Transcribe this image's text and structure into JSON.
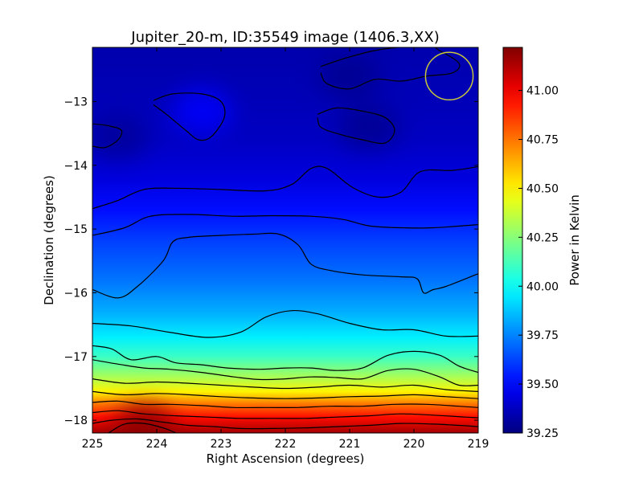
{
  "chart_data": {
    "type": "heatmap",
    "title": "Jupiter_20-m, ID:35549 image (1406.3,XX)",
    "xlabel": "Right Ascension (degrees)",
    "ylabel": "Declination (degrees)",
    "colorbar_label": "Power in Kelvin",
    "colormap": "jet",
    "xlim": [
      225,
      219
    ],
    "ylim": [
      -18.2,
      -12.15
    ],
    "clim": [
      39.25,
      41.22
    ],
    "x_ticks": [
      225,
      224,
      223,
      222,
      221,
      220,
      219
    ],
    "x_tick_labels": [
      "225",
      "224",
      "223",
      "222",
      "221",
      "220",
      "219"
    ],
    "y_ticks": [
      -13,
      -14,
      -15,
      -16,
      -17,
      -18
    ],
    "y_tick_labels": [
      "−13",
      "−14",
      "−15",
      "−16",
      "−17",
      "−18"
    ],
    "colorbar_ticks": [
      41.0,
      40.75,
      40.5,
      40.25,
      40.0,
      39.75,
      39.5,
      39.25
    ],
    "colorbar_tick_labels": [
      "41.00",
      "40.75",
      "40.50",
      "40.25",
      "40.00",
      "39.75",
      "39.50",
      "39.25"
    ],
    "value_rows": [
      {
        "dec": -12.2,
        "value": 39.34
      },
      {
        "dec": -13.0,
        "value": 39.36
      },
      {
        "dec": -13.6,
        "value": 39.38
      },
      {
        "dec": -14.2,
        "value": 39.43
      },
      {
        "dec": -14.7,
        "value": 39.52
      },
      {
        "dec": -15.2,
        "value": 39.62
      },
      {
        "dec": -15.8,
        "value": 39.72
      },
      {
        "dec": -16.3,
        "value": 39.83
      },
      {
        "dec": -16.7,
        "value": 39.96
      },
      {
        "dec": -17.0,
        "value": 40.1
      },
      {
        "dec": -17.3,
        "value": 40.3
      },
      {
        "dec": -17.55,
        "value": 40.5
      },
      {
        "dec": -17.75,
        "value": 40.75
      },
      {
        "dec": -17.95,
        "value": 40.95
      },
      {
        "dec": -18.2,
        "value": 41.15
      }
    ],
    "local_features": [
      {
        "ra": 223.3,
        "dec": -13.15,
        "value": 39.5
      },
      {
        "ra": 224.6,
        "dec": -13.55,
        "value": 39.3
      },
      {
        "ra": 220.7,
        "dec": -13.4,
        "value": 39.28
      },
      {
        "ra": 221.0,
        "dec": -12.6,
        "value": 39.28
      },
      {
        "ra": 224.2,
        "dec": -18.1,
        "value": 41.2
      }
    ],
    "contours": [
      {
        "points": [
          [
            224.05,
            -12.98
          ],
          [
            223.75,
            -12.88
          ],
          [
            223.3,
            -12.88
          ],
          [
            223.0,
            -13.0
          ],
          [
            222.95,
            -13.25
          ],
          [
            223.15,
            -13.55
          ],
          [
            223.35,
            -13.6
          ],
          [
            223.55,
            -13.45
          ],
          [
            223.85,
            -13.2
          ],
          [
            224.05,
            -13.05
          ]
        ]
      },
      {
        "points": [
          [
            225,
            -13.35
          ],
          [
            224.75,
            -13.38
          ],
          [
            224.55,
            -13.45
          ],
          [
            224.6,
            -13.6
          ],
          [
            224.8,
            -13.72
          ],
          [
            225,
            -13.7
          ]
        ]
      },
      {
        "points": [
          [
            221.5,
            -13.2
          ],
          [
            221.2,
            -13.1
          ],
          [
            220.8,
            -13.15
          ],
          [
            220.45,
            -13.25
          ],
          [
            220.3,
            -13.45
          ],
          [
            220.45,
            -13.65
          ],
          [
            220.8,
            -13.6
          ],
          [
            221.2,
            -13.5
          ],
          [
            221.45,
            -13.4
          ],
          [
            221.5,
            -13.25
          ]
        ]
      },
      {
        "points": [
          [
            221.45,
            -12.45
          ],
          [
            221.0,
            -12.3
          ],
          [
            220.5,
            -12.18
          ],
          [
            219.8,
            -12.12
          ],
          [
            219.6,
            -12.2
          ],
          [
            219.3,
            -12.4
          ],
          [
            219.4,
            -12.55
          ],
          [
            219.8,
            -12.6
          ],
          [
            220.2,
            -12.68
          ],
          [
            220.6,
            -12.65
          ],
          [
            221.0,
            -12.8
          ],
          [
            221.35,
            -12.72
          ],
          [
            221.45,
            -12.55
          ]
        ]
      },
      {
        "points": [
          [
            225,
            -14.68
          ],
          [
            224.6,
            -14.55
          ],
          [
            224.2,
            -14.38
          ],
          [
            223.7,
            -14.36
          ],
          [
            223.0,
            -14.38
          ],
          [
            222.3,
            -14.4
          ],
          [
            221.9,
            -14.3
          ],
          [
            221.6,
            -14.05
          ],
          [
            221.35,
            -14.05
          ],
          [
            220.95,
            -14.35
          ],
          [
            220.55,
            -14.5
          ],
          [
            220.2,
            -14.42
          ],
          [
            219.9,
            -14.1
          ],
          [
            219.4,
            -14.08
          ],
          [
            219,
            -14.02
          ]
        ]
      },
      {
        "points": [
          [
            225,
            -15.1
          ],
          [
            224.5,
            -14.98
          ],
          [
            224.1,
            -14.8
          ],
          [
            223.5,
            -14.77
          ],
          [
            222.8,
            -14.8
          ],
          [
            222.2,
            -14.79
          ],
          [
            221.6,
            -14.8
          ],
          [
            221.1,
            -14.85
          ],
          [
            220.7,
            -14.95
          ],
          [
            220.2,
            -14.98
          ],
          [
            219.7,
            -14.98
          ],
          [
            219,
            -14.93
          ]
        ]
      },
      {
        "points": [
          [
            225,
            -15.95
          ],
          [
            224.6,
            -16.08
          ],
          [
            224.3,
            -15.9
          ],
          [
            223.9,
            -15.5
          ],
          [
            223.75,
            -15.2
          ],
          [
            223.5,
            -15.13
          ],
          [
            223.0,
            -15.1
          ],
          [
            222.5,
            -15.08
          ],
          [
            222.1,
            -15.08
          ],
          [
            221.8,
            -15.25
          ],
          [
            221.6,
            -15.55
          ],
          [
            221.3,
            -15.65
          ],
          [
            220.8,
            -15.72
          ],
          [
            220.2,
            -15.75
          ],
          [
            219.95,
            -15.78
          ],
          [
            219.85,
            -16.0
          ],
          [
            219.7,
            -15.95
          ],
          [
            219.5,
            -15.9
          ],
          [
            219,
            -15.7
          ]
        ]
      },
      {
        "points": [
          [
            225,
            -16.48
          ],
          [
            224.4,
            -16.52
          ],
          [
            223.8,
            -16.62
          ],
          [
            223.2,
            -16.7
          ],
          [
            222.7,
            -16.62
          ],
          [
            222.3,
            -16.38
          ],
          [
            221.9,
            -16.28
          ],
          [
            221.5,
            -16.33
          ],
          [
            221.0,
            -16.48
          ],
          [
            220.5,
            -16.58
          ],
          [
            220.0,
            -16.58
          ],
          [
            219.5,
            -16.68
          ],
          [
            219,
            -16.68
          ]
        ]
      },
      {
        "points": [
          [
            225,
            -16.83
          ],
          [
            224.7,
            -16.88
          ],
          [
            224.4,
            -17.05
          ],
          [
            224.0,
            -17.0
          ],
          [
            223.7,
            -17.1
          ],
          [
            223.3,
            -17.13
          ],
          [
            222.9,
            -17.18
          ],
          [
            222.4,
            -17.2
          ],
          [
            222.0,
            -17.18
          ],
          [
            221.6,
            -17.18
          ],
          [
            221.2,
            -17.22
          ],
          [
            220.8,
            -17.18
          ],
          [
            220.4,
            -16.98
          ],
          [
            220.0,
            -16.92
          ],
          [
            219.6,
            -16.98
          ],
          [
            219.3,
            -17.15
          ],
          [
            219,
            -17.25
          ]
        ]
      },
      {
        "points": [
          [
            225,
            -17.05
          ],
          [
            224.6,
            -17.12
          ],
          [
            224.2,
            -17.18
          ],
          [
            223.8,
            -17.2
          ],
          [
            223.3,
            -17.25
          ],
          [
            222.8,
            -17.32
          ],
          [
            222.4,
            -17.36
          ],
          [
            222.0,
            -17.35
          ],
          [
            221.6,
            -17.32
          ],
          [
            221.2,
            -17.33
          ],
          [
            220.8,
            -17.35
          ],
          [
            220.4,
            -17.22
          ],
          [
            220.0,
            -17.2
          ],
          [
            219.6,
            -17.32
          ],
          [
            219.3,
            -17.45
          ],
          [
            219,
            -17.45
          ]
        ]
      },
      {
        "points": [
          [
            225,
            -17.35
          ],
          [
            224.5,
            -17.42
          ],
          [
            224.0,
            -17.4
          ],
          [
            223.5,
            -17.42
          ],
          [
            223.0,
            -17.45
          ],
          [
            222.5,
            -17.48
          ],
          [
            222.0,
            -17.5
          ],
          [
            221.5,
            -17.48
          ],
          [
            221.0,
            -17.45
          ],
          [
            220.5,
            -17.48
          ],
          [
            220.0,
            -17.45
          ],
          [
            219.5,
            -17.52
          ],
          [
            219,
            -17.55
          ]
        ]
      },
      {
        "points": [
          [
            225,
            -17.55
          ],
          [
            224.5,
            -17.6
          ],
          [
            224.0,
            -17.58
          ],
          [
            223.5,
            -17.6
          ],
          [
            223.0,
            -17.63
          ],
          [
            222.5,
            -17.65
          ],
          [
            222.0,
            -17.66
          ],
          [
            221.5,
            -17.65
          ],
          [
            221.0,
            -17.63
          ],
          [
            220.5,
            -17.62
          ],
          [
            220.0,
            -17.6
          ],
          [
            219.5,
            -17.63
          ],
          [
            219,
            -17.66
          ]
        ]
      },
      {
        "points": [
          [
            225,
            -17.72
          ],
          [
            224.6,
            -17.7
          ],
          [
            224.2,
            -17.75
          ],
          [
            223.8,
            -17.75
          ],
          [
            223.3,
            -17.77
          ],
          [
            222.8,
            -17.8
          ],
          [
            222.3,
            -17.8
          ],
          [
            221.8,
            -17.8
          ],
          [
            221.3,
            -17.78
          ],
          [
            220.8,
            -17.78
          ],
          [
            220.3,
            -17.75
          ],
          [
            219.8,
            -17.75
          ],
          [
            219.3,
            -17.78
          ],
          [
            219,
            -17.8
          ]
        ]
      },
      {
        "points": [
          [
            225,
            -17.88
          ],
          [
            224.6,
            -17.85
          ],
          [
            224.2,
            -17.9
          ],
          [
            223.7,
            -17.93
          ],
          [
            223.2,
            -17.95
          ],
          [
            222.7,
            -17.97
          ],
          [
            222.2,
            -17.97
          ],
          [
            221.7,
            -17.97
          ],
          [
            221.2,
            -17.95
          ],
          [
            220.7,
            -17.93
          ],
          [
            220.2,
            -17.9
          ],
          [
            219.7,
            -17.92
          ],
          [
            219.2,
            -17.95
          ],
          [
            219,
            -17.96
          ]
        ]
      },
      {
        "points": [
          [
            225,
            -18.05
          ],
          [
            224.7,
            -18.0
          ],
          [
            224.3,
            -17.98
          ],
          [
            223.9,
            -18.03
          ],
          [
            223.5,
            -18.08
          ],
          [
            223.1,
            -18.1
          ],
          [
            222.7,
            -18.13
          ],
          [
            222.2,
            -18.13
          ],
          [
            221.7,
            -18.12
          ],
          [
            221.2,
            -18.1
          ],
          [
            220.7,
            -18.08
          ],
          [
            220.2,
            -18.05
          ],
          [
            219.7,
            -18.06
          ],
          [
            219.3,
            -18.08
          ],
          [
            219,
            -18.1
          ]
        ]
      },
      {
        "points": [
          [
            224.75,
            -18.2
          ],
          [
            224.5,
            -18.06
          ],
          [
            224.2,
            -18.05
          ],
          [
            223.9,
            -18.12
          ],
          [
            223.7,
            -18.2
          ]
        ]
      },
      {
        "points": [
          [
            222.9,
            -18.2
          ],
          [
            222.7,
            -18.22
          ]
        ]
      }
    ],
    "beam_circle": {
      "ra": 219.45,
      "dec": -12.6,
      "radius_deg": 0.37,
      "color": "#c8c83c"
    }
  }
}
